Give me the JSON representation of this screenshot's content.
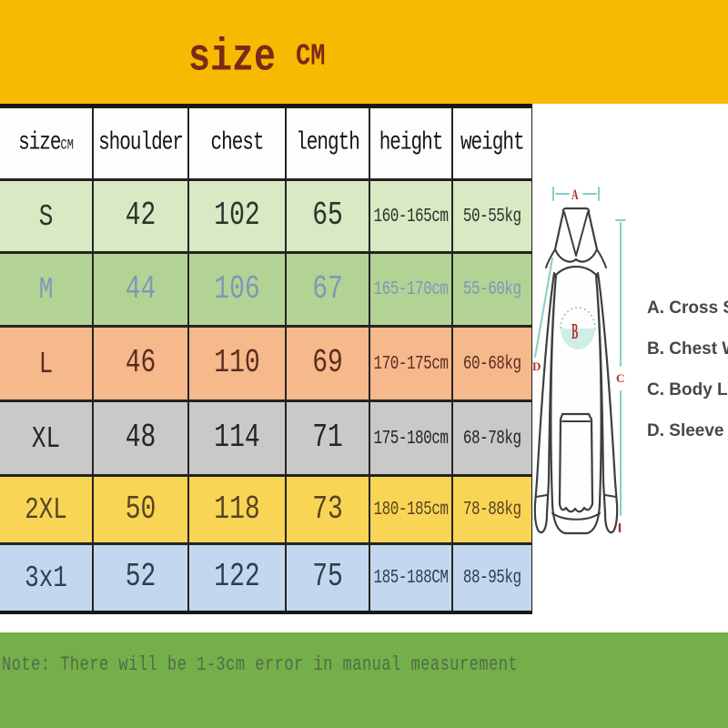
{
  "banner": {
    "title": "size",
    "unit": "CM"
  },
  "table": {
    "columns": [
      {
        "label": "size",
        "sub": "CM"
      },
      {
        "label": "shoulder"
      },
      {
        "label": "chest"
      },
      {
        "label": "length"
      },
      {
        "label": "height"
      },
      {
        "label": "weight"
      }
    ],
    "rows": [
      {
        "size": "S",
        "shoulder": "42",
        "chest": "102",
        "length": "65",
        "height": "160-165cm",
        "weight": "50-55kg",
        "bg": "#D8E9C4",
        "color": "#2A342B"
      },
      {
        "size": "M",
        "shoulder": "44",
        "chest": "106",
        "length": "67",
        "height": "165-170cm",
        "weight": "55-60kg",
        "bg": "#B2D394",
        "color": "#7C99B8"
      },
      {
        "size": "L",
        "shoulder": "46",
        "chest": "110",
        "length": "69",
        "height": "170-175cm",
        "weight": "60-68kg",
        "bg": "#F5B98C",
        "color": "#5C2D1F"
      },
      {
        "size": "XL",
        "shoulder": "48",
        "chest": "114",
        "length": "71",
        "height": "175-180cm",
        "weight": "68-78kg",
        "bg": "#C9C9C7",
        "color": "#242424"
      },
      {
        "size": "2XL",
        "shoulder": "50",
        "chest": "118",
        "length": "73",
        "height": "180-185cm",
        "weight": "78-88kg",
        "bg": "#F8D554",
        "color": "#584420"
      },
      {
        "size": "3x1",
        "shoulder": "52",
        "chest": "122",
        "length": "75",
        "height": "185-188CM",
        "weight": "88-95kg",
        "bg": "#C3D8EE",
        "color": "#2E3F4E"
      }
    ]
  },
  "diagram": {
    "markers": {
      "a": "A",
      "b": "B",
      "c": "C",
      "d": "D"
    },
    "labels": [
      "A. Cross Shoulder",
      "B. Chest Width",
      "C. Body Length",
      "D. Sleeve Length"
    ]
  },
  "note": {
    "text": "Note: There will be 1-3cm error in manual measurement"
  },
  "colors": {
    "banner": "#F8B903",
    "title_text": "#7A2B16",
    "note_band": "#75AF49",
    "note_text": "#4F6C4B",
    "measure_teal": "#86CFC2",
    "marker_red": "#AF3127"
  }
}
